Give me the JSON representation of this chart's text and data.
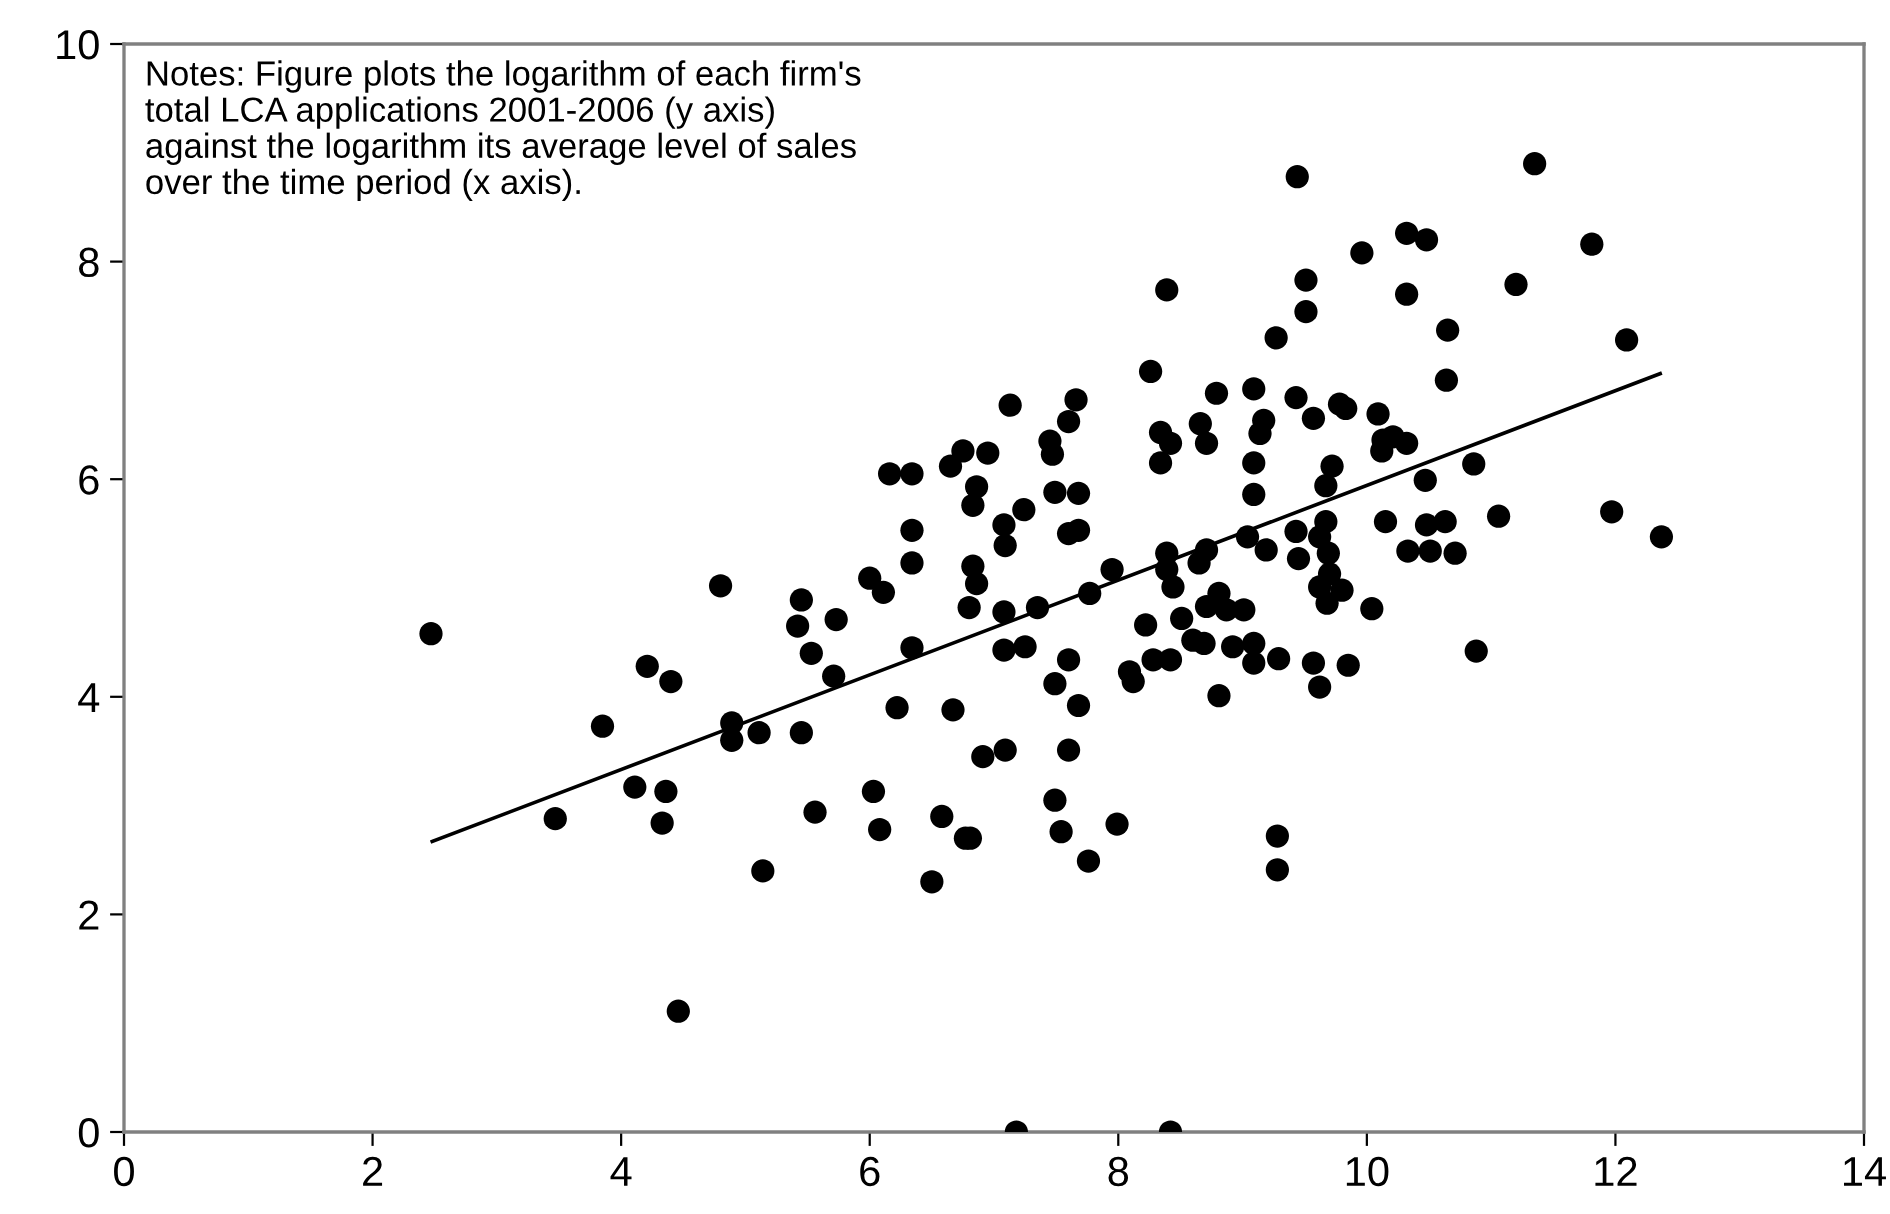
{
  "chart_data": {
    "type": "scatter",
    "annotations": [
      "Notes: Figure plots the logarithm of each firm's\ntotal LCA applications 2001-2006 (y axis)\nagainst the logarithm its average level of sales\nover the time period (x axis)."
    ],
    "xlim": [
      0,
      14
    ],
    "ylim": [
      0,
      10
    ],
    "xticks": [
      0,
      2,
      4,
      6,
      8,
      10,
      12,
      14
    ],
    "yticks": [
      0,
      2,
      4,
      6,
      8,
      10
    ],
    "grid": false,
    "series": [
      {
        "marker": "circle",
        "color": "#000000",
        "x": [
          9.44,
          11.35,
          10.32,
          10.48,
          11.81,
          9.96,
          9.51,
          9.51,
          10.32,
          11.2,
          9.27,
          10.65,
          12.09,
          10.64,
          8.79,
          9.09,
          9.43,
          9.57,
          9.78,
          9.83,
          10.09,
          8.66,
          8.71,
          9.17,
          9.14,
          10.13,
          10.21,
          10.32,
          10.12,
          9.09,
          9.09,
          9.72,
          9.67,
          10.86,
          10.47,
          11.06,
          11.97,
          12.37,
          10.15,
          10.48,
          10.63,
          10.33,
          10.51,
          10.71,
          8.71,
          9.04,
          9.19,
          9.43,
          9.45,
          9.67,
          9.62,
          9.69,
          9.62,
          9.7,
          9.8,
          9.68,
          10.04,
          8.81,
          9.01,
          8.69,
          8.92,
          9.09,
          9.09,
          9.29,
          9.57,
          9.62,
          9.85,
          8.81,
          10.88,
          9.28,
          9.28,
          8.39,
          8.26,
          7.13,
          7.66,
          7.6,
          8.34,
          8.42,
          8.34,
          6.16,
          6.34,
          6.65,
          6.75,
          6.95,
          7.45,
          7.47,
          6.86,
          6.83,
          7.24,
          7.49,
          7.68,
          7.08,
          7.09,
          7.6,
          7.68,
          6.34,
          6.34,
          6.83,
          6.86,
          6.11,
          6.8,
          7.08,
          7.35,
          7.77,
          7.95,
          8.39,
          8.39,
          8.44,
          8.65,
          8.71,
          8.87,
          8.22,
          8.51,
          8.6,
          8.28,
          8.42,
          8.09,
          8.12,
          6.34,
          7.08,
          7.25,
          7.6,
          7.49,
          7.68,
          6.22,
          6.67,
          6.91,
          7.09,
          7.6,
          6.03,
          6.58,
          6.77,
          6.81,
          6.08,
          7.49,
          7.54,
          7.99,
          7.76,
          6.5,
          2.47,
          3.47,
          3.85,
          4.11,
          4.21,
          4.4,
          4.36,
          4.33,
          4.46,
          4.8,
          4.89,
          4.89,
          5.11,
          5.14,
          5.45,
          5.42,
          5.53,
          5.45,
          5.56,
          5.73,
          5.71,
          6.0,
          7.18,
          8.42
        ],
        "values": [
          8.78,
          8.9,
          8.26,
          8.2,
          8.16,
          8.08,
          7.83,
          7.54,
          7.7,
          7.79,
          7.3,
          7.37,
          7.28,
          6.91,
          6.79,
          6.83,
          6.75,
          6.56,
          6.69,
          6.65,
          6.6,
          6.51,
          6.33,
          6.54,
          6.42,
          6.36,
          6.39,
          6.33,
          6.26,
          6.15,
          5.86,
          6.12,
          5.94,
          6.14,
          5.99,
          5.66,
          5.7,
          5.47,
          5.61,
          5.58,
          5.61,
          5.34,
          5.34,
          5.32,
          5.35,
          5.47,
          5.35,
          5.52,
          5.27,
          5.61,
          5.47,
          5.32,
          5.01,
          5.13,
          4.98,
          4.86,
          4.81,
          4.95,
          4.8,
          4.49,
          4.46,
          4.49,
          4.31,
          4.35,
          4.31,
          4.09,
          4.29,
          4.01,
          4.42,
          2.72,
          2.41,
          7.74,
          6.99,
          6.68,
          6.73,
          6.53,
          6.43,
          6.33,
          6.15,
          6.05,
          6.05,
          6.12,
          6.26,
          6.24,
          6.35,
          6.23,
          5.93,
          5.76,
          5.72,
          5.88,
          5.87,
          5.58,
          5.39,
          5.5,
          5.53,
          5.53,
          5.23,
          5.2,
          5.04,
          4.96,
          4.82,
          4.78,
          4.82,
          4.95,
          5.17,
          5.32,
          5.17,
          5.01,
          5.23,
          4.83,
          4.8,
          4.66,
          4.72,
          4.52,
          4.34,
          4.34,
          4.23,
          4.14,
          4.45,
          4.43,
          4.46,
          4.34,
          4.12,
          3.92,
          3.9,
          3.88,
          3.45,
          3.51,
          3.51,
          3.13,
          2.9,
          2.7,
          2.7,
          2.78,
          3.05,
          2.76,
          2.83,
          2.49,
          2.3,
          4.58,
          2.88,
          3.73,
          3.17,
          4.28,
          4.14,
          3.13,
          2.84,
          1.11,
          5.02,
          3.76,
          3.6,
          3.67,
          2.4,
          4.89,
          4.65,
          4.4,
          3.67,
          2.94,
          4.71,
          4.19,
          5.09,
          0,
          0
        ]
      },
      {
        "type": "line",
        "color": "#000000",
        "x": [
          2.48,
          12.36
        ],
        "values": [
          2.67,
          6.97
        ]
      }
    ]
  }
}
